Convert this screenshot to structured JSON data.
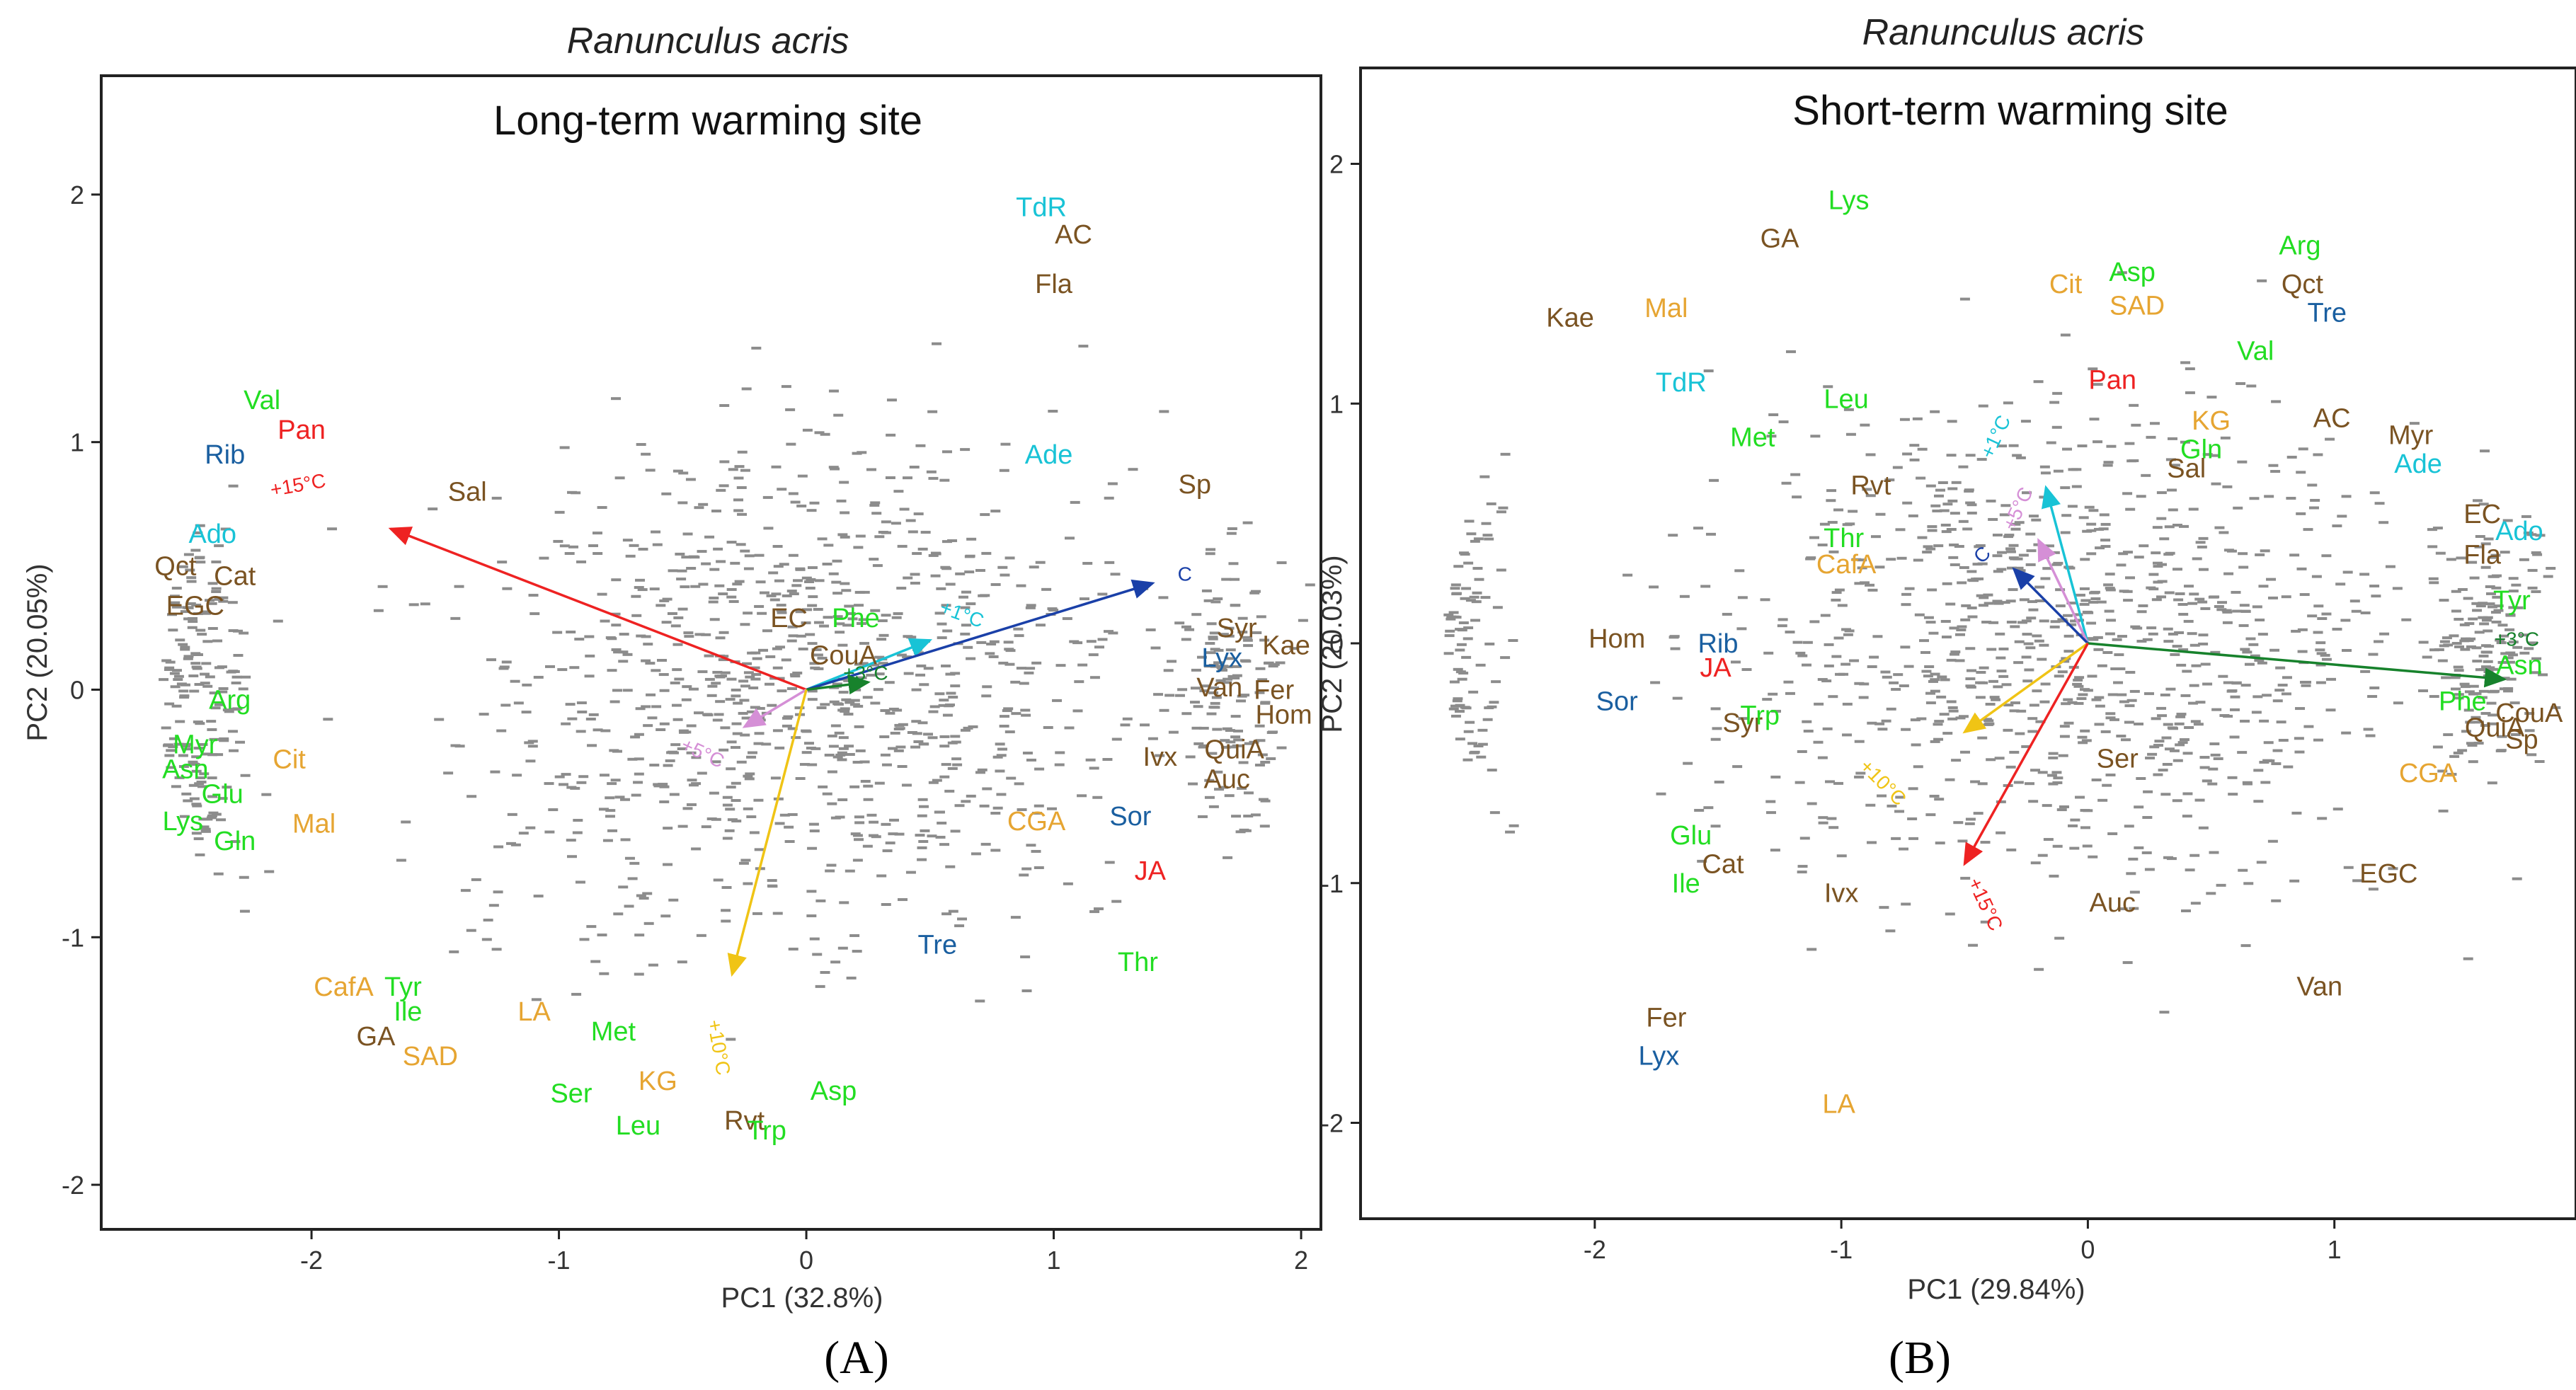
{
  "figure": {
    "labels": [
      "(A)",
      "(B)"
    ]
  },
  "colors": {
    "amino_acid": "#22dd22",
    "phenolic": "#7a5322",
    "other_orange": "#e6a532",
    "sugar_blue": "#1a5fa0",
    "cyan": "#18c3d6",
    "red": "#ee2222",
    "points": "#8c8c8c"
  },
  "chart_data": [
    {
      "type": "scatter",
      "species": "Ranunculus acris",
      "title": "Long-term warming site",
      "xlabel": "PC1 (32.8%)",
      "ylabel": "PC2 (20.05%)",
      "xlim": [
        -2.85,
        2.08
      ],
      "ylim": [
        -2.18,
        2.48
      ],
      "xticks": [
        -2,
        -1,
        0,
        1,
        2
      ],
      "yticks": [
        -2,
        -1,
        0,
        1,
        2
      ],
      "tick_labels_x": [
        "-2",
        "-1",
        "0",
        "1",
        "2"
      ],
      "tick_labels_y": [
        "-2",
        "-1",
        "0",
        "1",
        "2"
      ],
      "vectors": [
        {
          "label": "+1°C",
          "x": 0.5,
          "y": 0.2,
          "color": "#18c3d6",
          "lx": 0.62,
          "ly": 0.28,
          "rot": -20
        },
        {
          "label": "C",
          "x": 1.4,
          "y": 0.43,
          "color": "#1a40a8",
          "lx": 1.53,
          "ly": 0.44,
          "rot": 0
        },
        {
          "label": "+3°C",
          "x": 0.25,
          "y": 0.03,
          "color": "#17822c",
          "lx": 0.24,
          "ly": 0.04,
          "rot": 0
        },
        {
          "label": "+15°C",
          "x": -1.68,
          "y": 0.65,
          "color": "#ee2222",
          "lx": -2.05,
          "ly": 0.8,
          "rot": 10
        },
        {
          "label": "+5°C",
          "x": -0.25,
          "y": -0.15,
          "color": "#d58fd6",
          "lx": -0.43,
          "ly": -0.28,
          "rot": -25
        },
        {
          "label": "+10°C",
          "x": -0.3,
          "y": -1.15,
          "color": "#f0c415",
          "lx": -0.38,
          "ly": -1.45,
          "rot": -80
        }
      ],
      "variables": [
        {
          "label": "TdR",
          "x": 0.95,
          "y": 1.95,
          "color": "#18c3d6"
        },
        {
          "label": "AC",
          "x": 1.08,
          "y": 1.84,
          "color": "#7a5322"
        },
        {
          "label": "Fla",
          "x": 1.0,
          "y": 1.64,
          "color": "#7a5322"
        },
        {
          "label": "Ade",
          "x": 0.98,
          "y": 0.95,
          "color": "#18c3d6"
        },
        {
          "label": "Sp",
          "x": 1.57,
          "y": 0.83,
          "color": "#7a5322"
        },
        {
          "label": "Val",
          "x": -2.2,
          "y": 1.17,
          "color": "#22dd22"
        },
        {
          "label": "Pan",
          "x": -2.04,
          "y": 1.05,
          "color": "#ee2222"
        },
        {
          "label": "Rib",
          "x": -2.35,
          "y": 0.95,
          "color": "#1a5fa0"
        },
        {
          "label": "Sal",
          "x": -1.37,
          "y": 0.8,
          "color": "#7a5322"
        },
        {
          "label": "Ado",
          "x": -2.4,
          "y": 0.63,
          "color": "#18c3d6"
        },
        {
          "label": "Qct",
          "x": -2.55,
          "y": 0.5,
          "color": "#7a5322"
        },
        {
          "label": "Cat",
          "x": -2.31,
          "y": 0.46,
          "color": "#7a5322"
        },
        {
          "label": "EGC",
          "x": -2.47,
          "y": 0.34,
          "color": "#7a5322"
        },
        {
          "label": "EC",
          "x": -0.07,
          "y": 0.29,
          "color": "#7a5322"
        },
        {
          "label": "Phe",
          "x": 0.2,
          "y": 0.29,
          "color": "#22dd22"
        },
        {
          "label": "CouA",
          "x": 0.15,
          "y": 0.14,
          "color": "#7a5322"
        },
        {
          "label": "Syr",
          "x": 1.74,
          "y": 0.25,
          "color": "#7a5322"
        },
        {
          "label": "Kae",
          "x": 1.94,
          "y": 0.18,
          "color": "#7a5322"
        },
        {
          "label": "Lyx",
          "x": 1.68,
          "y": 0.13,
          "color": "#1a5fa0"
        },
        {
          "label": "Van",
          "x": 1.67,
          "y": 0.01,
          "color": "#7a5322"
        },
        {
          "label": "Fer",
          "x": 1.89,
          "y": 0.0,
          "color": "#7a5322"
        },
        {
          "label": "Hom",
          "x": 1.93,
          "y": -0.1,
          "color": "#7a5322"
        },
        {
          "label": "Arg",
          "x": -2.33,
          "y": -0.04,
          "color": "#22dd22"
        },
        {
          "label": "Myr",
          "x": -2.47,
          "y": -0.22,
          "color": "#22dd22"
        },
        {
          "label": "Asn",
          "x": -2.51,
          "y": -0.32,
          "color": "#22dd22"
        },
        {
          "label": "Cit",
          "x": -2.09,
          "y": -0.28,
          "color": "#e6a532"
        },
        {
          "label": "Glu",
          "x": -2.36,
          "y": -0.42,
          "color": "#22dd22"
        },
        {
          "label": "Lys",
          "x": -2.52,
          "y": -0.53,
          "color": "#22dd22"
        },
        {
          "label": "Mal",
          "x": -1.99,
          "y": -0.54,
          "color": "#e6a532"
        },
        {
          "label": "Gln",
          "x": -2.31,
          "y": -0.61,
          "color": "#22dd22"
        },
        {
          "label": "Ivx",
          "x": 1.43,
          "y": -0.27,
          "color": "#7a5322"
        },
        {
          "label": "QuiA",
          "x": 1.73,
          "y": -0.24,
          "color": "#7a5322"
        },
        {
          "label": "Auc",
          "x": 1.7,
          "y": -0.36,
          "color": "#7a5322"
        },
        {
          "label": "CGA",
          "x": 0.93,
          "y": -0.53,
          "color": "#e6a532"
        },
        {
          "label": "Sor",
          "x": 1.31,
          "y": -0.51,
          "color": "#1a5fa0"
        },
        {
          "label": "JA",
          "x": 1.39,
          "y": -0.73,
          "color": "#ee2222"
        },
        {
          "label": "Tre",
          "x": 0.53,
          "y": -1.03,
          "color": "#1a5fa0"
        },
        {
          "label": "Thr",
          "x": 1.34,
          "y": -1.1,
          "color": "#22dd22"
        },
        {
          "label": "CafA",
          "x": -1.87,
          "y": -1.2,
          "color": "#e6a532"
        },
        {
          "label": "Tyr",
          "x": -1.63,
          "y": -1.2,
          "color": "#22dd22"
        },
        {
          "label": "Ile",
          "x": -1.61,
          "y": -1.3,
          "color": "#22dd22"
        },
        {
          "label": "LA",
          "x": -1.1,
          "y": -1.3,
          "color": "#e6a532"
        },
        {
          "label": "GA",
          "x": -1.74,
          "y": -1.4,
          "color": "#7a5322"
        },
        {
          "label": "Met",
          "x": -0.78,
          "y": -1.38,
          "color": "#22dd22"
        },
        {
          "label": "SAD",
          "x": -1.52,
          "y": -1.48,
          "color": "#e6a532"
        },
        {
          "label": "KG",
          "x": -0.6,
          "y": -1.58,
          "color": "#e6a532"
        },
        {
          "label": "Ser",
          "x": -0.95,
          "y": -1.63,
          "color": "#22dd22"
        },
        {
          "label": "Asp",
          "x": 0.11,
          "y": -1.62,
          "color": "#22dd22"
        },
        {
          "label": "Leu",
          "x": -0.68,
          "y": -1.76,
          "color": "#22dd22"
        },
        {
          "label": "Rvt",
          "x": -0.25,
          "y": -1.74,
          "color": "#7a5322"
        },
        {
          "label": "Trp",
          "x": -0.16,
          "y": -1.78,
          "color": "#22dd22"
        }
      ]
    },
    {
      "type": "scatter",
      "species": "Ranunculus acris",
      "title": "Short-term warming site",
      "xlabel": "PC1 (29.84%)",
      "ylabel": "PC2 (20.03%)",
      "xlim": [
        -2.95,
        1.98
      ],
      "ylim": [
        -2.4,
        2.4
      ],
      "xticks": [
        -2,
        -1,
        0,
        1
      ],
      "yticks": [
        -2,
        -1,
        0,
        1,
        2
      ],
      "tick_labels_x": [
        "-2",
        "-1",
        "0",
        "1"
      ],
      "tick_labels_y": [
        "-2",
        "-1",
        "0",
        "1",
        "2"
      ],
      "vectors": [
        {
          "label": "+1°C",
          "x": -0.17,
          "y": 0.65,
          "color": "#18c3d6",
          "lx": -0.35,
          "ly": 0.85,
          "rot": 65
        },
        {
          "label": "+5°C",
          "x": -0.2,
          "y": 0.43,
          "color": "#d58fd6",
          "lx": -0.26,
          "ly": 0.55,
          "rot": 65
        },
        {
          "label": "C",
          "x": -0.3,
          "y": 0.31,
          "color": "#1a40a8",
          "lx": -0.41,
          "ly": 0.35,
          "rot": 45
        },
        {
          "label": "+3°C",
          "x": 1.69,
          "y": -0.15,
          "color": "#17822c",
          "lx": 1.74,
          "ly": -0.01,
          "rot": 0
        },
        {
          "label": "+10°C",
          "x": -0.5,
          "y": -0.37,
          "color": "#f0c415",
          "lx": -0.85,
          "ly": -0.6,
          "rot": -45
        },
        {
          "label": "+15°C",
          "x": -0.5,
          "y": -0.92,
          "color": "#ee2222",
          "lx": -0.44,
          "ly": -1.1,
          "rot": -65
        }
      ],
      "variables": [
        {
          "label": "Lys",
          "x": -0.97,
          "y": 1.85,
          "color": "#22dd22"
        },
        {
          "label": "GA",
          "x": -1.25,
          "y": 1.69,
          "color": "#7a5322"
        },
        {
          "label": "Arg",
          "x": 0.86,
          "y": 1.66,
          "color": "#22dd22"
        },
        {
          "label": "Asp",
          "x": 0.18,
          "y": 1.55,
          "color": "#22dd22"
        },
        {
          "label": "Cit",
          "x": -0.09,
          "y": 1.5,
          "color": "#e6a532"
        },
        {
          "label": "Qct",
          "x": 0.87,
          "y": 1.5,
          "color": "#7a5322"
        },
        {
          "label": "SAD",
          "x": 0.2,
          "y": 1.41,
          "color": "#e6a532"
        },
        {
          "label": "Tre",
          "x": 0.97,
          "y": 1.38,
          "color": "#1a5fa0"
        },
        {
          "label": "Kae",
          "x": -2.1,
          "y": 1.36,
          "color": "#7a5322"
        },
        {
          "label": "Mal",
          "x": -1.71,
          "y": 1.4,
          "color": "#e6a532"
        },
        {
          "label": "Val",
          "x": 0.68,
          "y": 1.22,
          "color": "#22dd22"
        },
        {
          "label": "TdR",
          "x": -1.65,
          "y": 1.09,
          "color": "#18c3d6"
        },
        {
          "label": "Pan",
          "x": 0.1,
          "y": 1.1,
          "color": "#ee2222"
        },
        {
          "label": "Leu",
          "x": -0.98,
          "y": 1.02,
          "color": "#22dd22"
        },
        {
          "label": "KG",
          "x": 0.5,
          "y": 0.93,
          "color": "#e6a532"
        },
        {
          "label": "AC",
          "x": 0.99,
          "y": 0.94,
          "color": "#7a5322"
        },
        {
          "label": "Met",
          "x": -1.36,
          "y": 0.86,
          "color": "#22dd22"
        },
        {
          "label": "Myr",
          "x": 1.31,
          "y": 0.87,
          "color": "#7a5322"
        },
        {
          "label": "Gln",
          "x": 0.46,
          "y": 0.81,
          "color": "#22dd22"
        },
        {
          "label": "Ade",
          "x": 1.34,
          "y": 0.75,
          "color": "#18c3d6"
        },
        {
          "label": "Sal",
          "x": 0.4,
          "y": 0.73,
          "color": "#7a5322"
        },
        {
          "label": "Rvt",
          "x": -0.88,
          "y": 0.66,
          "color": "#7a5322"
        },
        {
          "label": "EC",
          "x": 1.6,
          "y": 0.54,
          "color": "#7a5322"
        },
        {
          "label": "Ado",
          "x": 1.75,
          "y": 0.47,
          "color": "#18c3d6"
        },
        {
          "label": "Thr",
          "x": -0.99,
          "y": 0.44,
          "color": "#22dd22"
        },
        {
          "label": "CafA",
          "x": -0.98,
          "y": 0.33,
          "color": "#e6a532"
        },
        {
          "label": "Fla",
          "x": 1.6,
          "y": 0.37,
          "color": "#7a5322"
        },
        {
          "label": "Tyr",
          "x": 1.72,
          "y": 0.18,
          "color": "#22dd22"
        },
        {
          "label": "Hom",
          "x": -1.91,
          "y": 0.02,
          "color": "#7a5322"
        },
        {
          "label": "Rib",
          "x": -1.5,
          "y": 0.0,
          "color": "#1a5fa0"
        },
        {
          "label": "JA",
          "x": -1.51,
          "y": -0.1,
          "color": "#ee2222"
        },
        {
          "label": "Asn",
          "x": 1.75,
          "y": -0.09,
          "color": "#22dd22"
        },
        {
          "label": "Sor",
          "x": -1.91,
          "y": -0.24,
          "color": "#1a5fa0"
        },
        {
          "label": "Phe",
          "x": 1.52,
          "y": -0.24,
          "color": "#22dd22"
        },
        {
          "label": "CouA",
          "x": 1.79,
          "y": -0.29,
          "color": "#7a5322"
        },
        {
          "label": "Syr",
          "x": -1.4,
          "y": -0.33,
          "color": "#7a5322"
        },
        {
          "label": "Trp",
          "x": -1.33,
          "y": -0.3,
          "color": "#22dd22"
        },
        {
          "label": "QuiA",
          "x": 1.65,
          "y": -0.35,
          "color": "#7a5322"
        },
        {
          "label": "Sp",
          "x": 1.76,
          "y": -0.4,
          "color": "#7a5322"
        },
        {
          "label": "Ser",
          "x": 0.12,
          "y": -0.48,
          "color": "#7a5322"
        },
        {
          "label": "CGA",
          "x": 1.38,
          "y": -0.54,
          "color": "#e6a532"
        },
        {
          "label": "Glu",
          "x": -1.61,
          "y": -0.8,
          "color": "#22dd22"
        },
        {
          "label": "Cat",
          "x": -1.48,
          "y": -0.92,
          "color": "#7a5322"
        },
        {
          "label": "EGC",
          "x": 1.22,
          "y": -0.96,
          "color": "#7a5322"
        },
        {
          "label": "Ile",
          "x": -1.63,
          "y": -1.0,
          "color": "#22dd22"
        },
        {
          "label": "Ivx",
          "x": -1.0,
          "y": -1.04,
          "color": "#7a5322"
        },
        {
          "label": "Auc",
          "x": 0.1,
          "y": -1.08,
          "color": "#7a5322"
        },
        {
          "label": "Van",
          "x": 0.94,
          "y": -1.43,
          "color": "#7a5322"
        },
        {
          "label": "Fer",
          "x": -1.71,
          "y": -1.56,
          "color": "#7a5322"
        },
        {
          "label": "Lyx",
          "x": -1.74,
          "y": -1.72,
          "color": "#1a5fa0"
        },
        {
          "label": "LA",
          "x": -1.01,
          "y": -1.92,
          "color": "#e6a532"
        }
      ]
    }
  ]
}
